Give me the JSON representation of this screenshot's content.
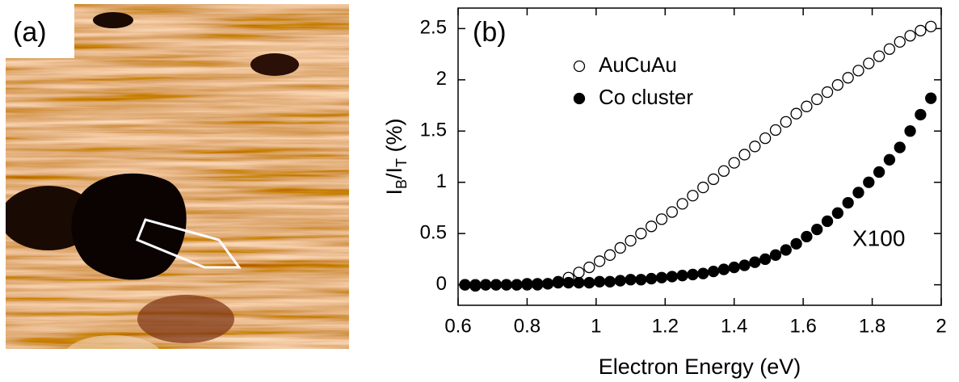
{
  "panel_a": {
    "label": "(a)"
  },
  "chart_data": {
    "type": "scatter",
    "panel_label": "(b)",
    "xlabel": "Electron Energy (eV)",
    "ylabel": [
      "I",
      "B",
      "/I",
      "T",
      " (%)"
    ],
    "annotation": "X100",
    "x": [
      0.62,
      0.65,
      0.68,
      0.71,
      0.74,
      0.77,
      0.8,
      0.83,
      0.86,
      0.89,
      0.92,
      0.95,
      0.98,
      1.01,
      1.04,
      1.07,
      1.1,
      1.13,
      1.16,
      1.19,
      1.22,
      1.25,
      1.28,
      1.31,
      1.34,
      1.37,
      1.4,
      1.43,
      1.46,
      1.49,
      1.52,
      1.55,
      1.58,
      1.61,
      1.64,
      1.67,
      1.7,
      1.73,
      1.76,
      1.79,
      1.82,
      1.85,
      1.88,
      1.91,
      1.94,
      1.97
    ],
    "series": [
      {
        "name": "AuCuAu",
        "color": "#000000",
        "marker": "open",
        "values": [
          0,
          0,
          0,
          0,
          0,
          0,
          0,
          0,
          0.01,
          0.03,
          0.07,
          0.12,
          0.17,
          0.23,
          0.29,
          0.36,
          0.43,
          0.5,
          0.57,
          0.64,
          0.71,
          0.79,
          0.87,
          0.95,
          1.03,
          1.11,
          1.19,
          1.27,
          1.35,
          1.43,
          1.51,
          1.59,
          1.67,
          1.74,
          1.81,
          1.88,
          1.95,
          2.02,
          2.09,
          2.16,
          2.23,
          2.3,
          2.37,
          2.43,
          2.48,
          2.52
        ]
      },
      {
        "name": "Co cluster",
        "color": "#000000",
        "marker": "filled",
        "values": [
          0,
          -0.01,
          0,
          0,
          0,
          0,
          0.01,
          0.01,
          0.01,
          0.02,
          0.02,
          0.02,
          0.02,
          0.03,
          0.03,
          0.04,
          0.05,
          0.05,
          0.06,
          0.07,
          0.08,
          0.09,
          0.1,
          0.11,
          0.13,
          0.15,
          0.17,
          0.19,
          0.22,
          0.25,
          0.29,
          0.34,
          0.4,
          0.47,
          0.54,
          0.62,
          0.7,
          0.8,
          0.9,
          1.0,
          1.1,
          1.22,
          1.34,
          1.5,
          1.66,
          1.82
        ]
      }
    ],
    "xlim": [
      0.6,
      2.0
    ],
    "xticks": [
      0.6,
      0.8,
      1,
      1.2,
      1.4,
      1.6,
      1.8,
      2
    ],
    "ylim": [
      -0.2,
      2.7
    ],
    "yticks": [
      0,
      0.5,
      1,
      1.5,
      2,
      2.5
    ],
    "legend": "upper left"
  }
}
